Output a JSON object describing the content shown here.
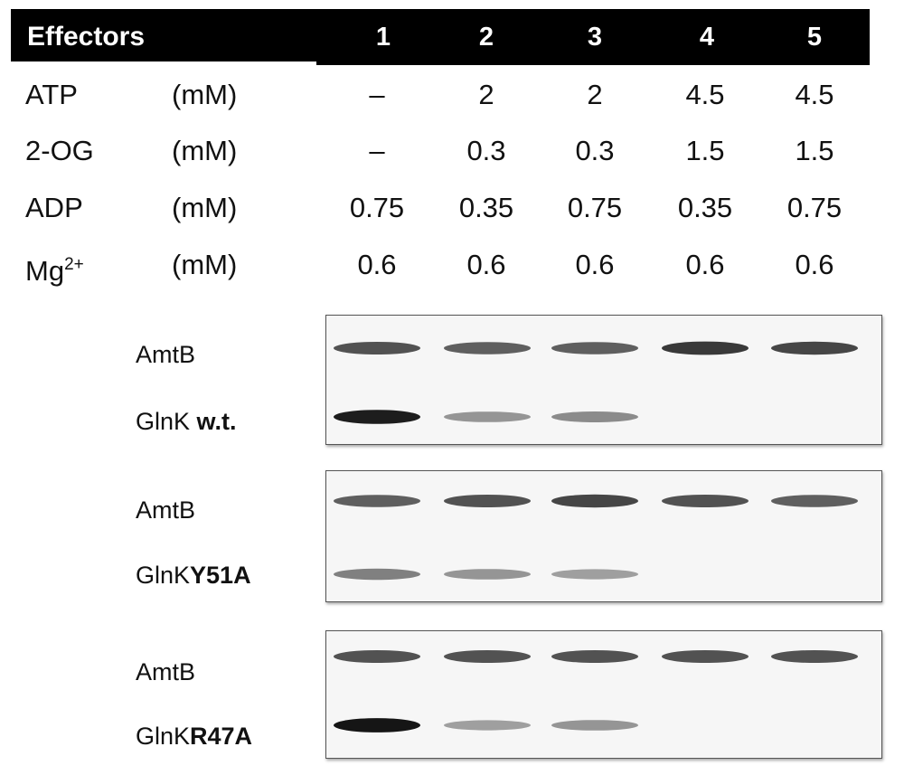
{
  "header": {
    "label": "Effectors",
    "lanes": [
      "1",
      "2",
      "3",
      "4",
      "5"
    ]
  },
  "effectors": [
    {
      "name": "ATP",
      "unit": "(mM)",
      "values": [
        "–",
        "2",
        "2",
        "4.5",
        "4.5"
      ]
    },
    {
      "name": "2-OG",
      "unit": "(mM)",
      "values": [
        "–",
        "0.3",
        "0.3",
        "1.5",
        "1.5"
      ]
    },
    {
      "name": "ADP",
      "unit": "(mM)",
      "values": [
        "0.75",
        "0.35",
        "0.75",
        "0.35",
        "0.75"
      ]
    },
    {
      "name": "Mg",
      "name_sup": "2+",
      "unit": "(mM)",
      "values": [
        "0.6",
        "0.6",
        "0.6",
        "0.6",
        "0.6"
      ]
    }
  ],
  "blots": [
    {
      "top_label": "AmtB",
      "bottom_prefix": "GlnK ",
      "bottom_bold": "w.t.",
      "amtb_intensity": [
        0.75,
        0.7,
        0.7,
        0.85,
        0.8
      ],
      "glnk_intensity": [
        0.95,
        0.45,
        0.5,
        0.0,
        0.0
      ]
    },
    {
      "top_label": "AmtB",
      "bottom_prefix": "GlnK",
      "bottom_bold": "Y51A",
      "amtb_intensity": [
        0.7,
        0.75,
        0.8,
        0.75,
        0.7
      ],
      "glnk_intensity": [
        0.55,
        0.45,
        0.4,
        0.0,
        0.0
      ]
    },
    {
      "top_label": "AmtB",
      "bottom_prefix": "GlnK",
      "bottom_bold": "R47A",
      "amtb_intensity": [
        0.75,
        0.75,
        0.75,
        0.75,
        0.75
      ],
      "glnk_intensity": [
        0.98,
        0.4,
        0.45,
        0.0,
        0.0
      ]
    }
  ]
}
